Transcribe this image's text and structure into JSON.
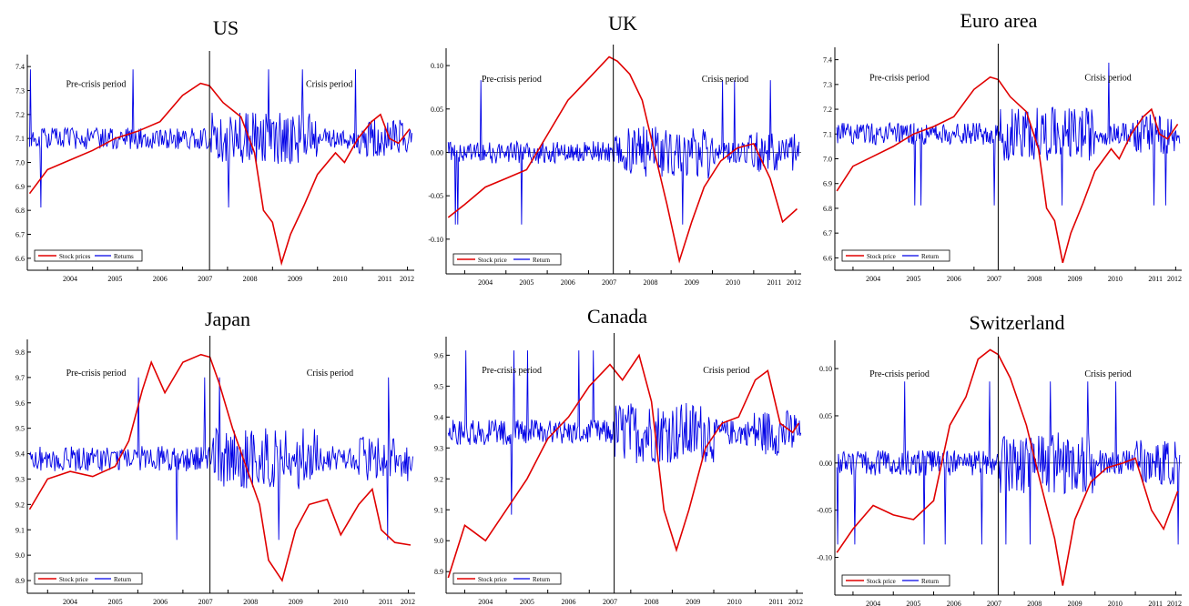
{
  "colors": {
    "stock": "#e00000",
    "returns": "#0000e6",
    "axis": "#000000",
    "zero": "#555555"
  },
  "chart_data": [
    {
      "type": "line",
      "title": "US",
      "x_ticks": [
        "2004",
        "2005",
        "2006",
        "2007",
        "2008",
        "2009",
        "2010",
        "2011",
        "2012"
      ],
      "y_ticks": [
        "6.6",
        "6.7",
        "6.8",
        "6.9",
        "7.0",
        "7.1",
        "7.2",
        "7.3",
        "7.4"
      ],
      "ylim": [
        6.55,
        7.45
      ],
      "crisis_break": 2007.6,
      "annotations": [
        "Pre-crisis period",
        "Crisis period"
      ],
      "legend": [
        "Stock prices",
        "Returns"
      ],
      "legend_position": "bottom-left",
      "return_level": 7.1,
      "zero_line": false,
      "stock_path": [
        [
          2003.6,
          6.87
        ],
        [
          2004.0,
          6.97
        ],
        [
          2004.5,
          7.01
        ],
        [
          2005.0,
          7.05
        ],
        [
          2005.5,
          7.1
        ],
        [
          2006.0,
          7.13
        ],
        [
          2006.5,
          7.17
        ],
        [
          2007.0,
          7.28
        ],
        [
          2007.4,
          7.33
        ],
        [
          2007.6,
          7.32
        ],
        [
          2007.9,
          7.25
        ],
        [
          2008.3,
          7.19
        ],
        [
          2008.6,
          7.04
        ],
        [
          2008.8,
          6.8
        ],
        [
          2009.0,
          6.75
        ],
        [
          2009.2,
          6.58
        ],
        [
          2009.4,
          6.7
        ],
        [
          2009.7,
          6.82
        ],
        [
          2010.0,
          6.95
        ],
        [
          2010.4,
          7.04
        ],
        [
          2010.6,
          7.0
        ],
        [
          2010.9,
          7.1
        ],
        [
          2011.2,
          7.17
        ],
        [
          2011.4,
          7.2
        ],
        [
          2011.6,
          7.1
        ],
        [
          2011.8,
          7.08
        ],
        [
          2012.05,
          7.14
        ]
      ]
    },
    {
      "type": "line",
      "title": "UK",
      "x_ticks": [
        "2004",
        "2005",
        "2006",
        "2007",
        "2008",
        "2009",
        "2010",
        "2011",
        "2012"
      ],
      "y_ticks": [
        "-0.10",
        "-0.05",
        "0.00",
        "0.05",
        "0.10"
      ],
      "ylim": [
        -0.14,
        0.12
      ],
      "crisis_break": 2007.6,
      "annotations": [
        "Pre-crisis period",
        "Crisis period"
      ],
      "legend": [
        "Stock price",
        "Return"
      ],
      "legend_position": "bottom-left",
      "return_level": 0.0,
      "zero_line": true,
      "stock_path": [
        [
          2003.6,
          -0.075
        ],
        [
          2004.0,
          -0.06
        ],
        [
          2004.5,
          -0.04
        ],
        [
          2005.0,
          -0.03
        ],
        [
          2005.5,
          -0.02
        ],
        [
          2006.0,
          0.02
        ],
        [
          2006.5,
          0.06
        ],
        [
          2007.0,
          0.085
        ],
        [
          2007.5,
          0.11
        ],
        [
          2007.7,
          0.105
        ],
        [
          2008.0,
          0.09
        ],
        [
          2008.3,
          0.06
        ],
        [
          2008.6,
          0.0
        ],
        [
          2008.9,
          -0.06
        ],
        [
          2009.2,
          -0.125
        ],
        [
          2009.5,
          -0.08
        ],
        [
          2009.8,
          -0.04
        ],
        [
          2010.2,
          -0.01
        ],
        [
          2010.6,
          0.005
        ],
        [
          2011.0,
          0.01
        ],
        [
          2011.4,
          -0.03
        ],
        [
          2011.7,
          -0.08
        ],
        [
          2012.05,
          -0.065
        ]
      ]
    },
    {
      "type": "line",
      "title": "Euro area",
      "x_ticks": [
        "2004",
        "2005",
        "2006",
        "2007",
        "2008",
        "2009",
        "2010",
        "2011",
        "2012"
      ],
      "y_ticks": [
        "6.6",
        "6.7",
        "6.8",
        "6.9",
        "7.0",
        "7.1",
        "7.2",
        "7.3",
        "7.4"
      ],
      "ylim": [
        6.55,
        7.45
      ],
      "crisis_break": 2007.6,
      "annotations": [
        "Pre-crisis period",
        "Crisis period"
      ],
      "legend": [
        "Stock price",
        "Return"
      ],
      "legend_position": "bottom-left",
      "return_level": 7.1,
      "zero_line": false,
      "stock_path": [
        [
          2003.6,
          6.87
        ],
        [
          2004.0,
          6.97
        ],
        [
          2004.5,
          7.01
        ],
        [
          2005.0,
          7.05
        ],
        [
          2005.5,
          7.1
        ],
        [
          2006.0,
          7.13
        ],
        [
          2006.5,
          7.17
        ],
        [
          2007.0,
          7.28
        ],
        [
          2007.4,
          7.33
        ],
        [
          2007.6,
          7.32
        ],
        [
          2007.9,
          7.25
        ],
        [
          2008.3,
          7.19
        ],
        [
          2008.6,
          7.04
        ],
        [
          2008.8,
          6.8
        ],
        [
          2009.0,
          6.75
        ],
        [
          2009.2,
          6.58
        ],
        [
          2009.4,
          6.7
        ],
        [
          2009.7,
          6.82
        ],
        [
          2010.0,
          6.95
        ],
        [
          2010.4,
          7.04
        ],
        [
          2010.6,
          7.0
        ],
        [
          2010.9,
          7.1
        ],
        [
          2011.2,
          7.17
        ],
        [
          2011.4,
          7.2
        ],
        [
          2011.6,
          7.1
        ],
        [
          2011.8,
          7.08
        ],
        [
          2012.05,
          7.14
        ]
      ]
    },
    {
      "type": "line",
      "title": "Japan",
      "x_ticks": [
        "2004",
        "2005",
        "2006",
        "2007",
        "2008",
        "2009",
        "2010",
        "2011",
        "2012"
      ],
      "y_ticks": [
        "8.9",
        "9.0",
        "9.1",
        "9.2",
        "9.3",
        "9.4",
        "9.5",
        "9.6",
        "9.7",
        "9.8"
      ],
      "ylim": [
        8.85,
        9.85
      ],
      "crisis_break": 2007.6,
      "annotations": [
        "Pre-crisis period",
        "Crisis period"
      ],
      "legend": [
        "Stock price",
        "Return"
      ],
      "legend_position": "bottom-left",
      "return_level": 9.38,
      "zero_line": false,
      "stock_path": [
        [
          2003.6,
          9.18
        ],
        [
          2004.0,
          9.3
        ],
        [
          2004.5,
          9.33
        ],
        [
          2005.0,
          9.31
        ],
        [
          2005.5,
          9.35
        ],
        [
          2005.8,
          9.45
        ],
        [
          2006.1,
          9.65
        ],
        [
          2006.3,
          9.76
        ],
        [
          2006.6,
          9.64
        ],
        [
          2007.0,
          9.76
        ],
        [
          2007.4,
          9.79
        ],
        [
          2007.6,
          9.78
        ],
        [
          2007.8,
          9.68
        ],
        [
          2008.1,
          9.5
        ],
        [
          2008.4,
          9.35
        ],
        [
          2008.7,
          9.2
        ],
        [
          2008.9,
          8.98
        ],
        [
          2009.2,
          8.9
        ],
        [
          2009.5,
          9.1
        ],
        [
          2009.8,
          9.2
        ],
        [
          2010.2,
          9.22
        ],
        [
          2010.5,
          9.08
        ],
        [
          2010.9,
          9.2
        ],
        [
          2011.2,
          9.26
        ],
        [
          2011.4,
          9.1
        ],
        [
          2011.7,
          9.05
        ],
        [
          2012.05,
          9.04
        ]
      ]
    },
    {
      "type": "line",
      "title": "Canada",
      "x_ticks": [
        "2004",
        "2005",
        "2006",
        "2007",
        "2008",
        "2009",
        "2010",
        "2011",
        "2012"
      ],
      "y_ticks": [
        "8.9",
        "9.0",
        "9.1",
        "9.2",
        "9.3",
        "9.4",
        "9.5",
        "9.6"
      ],
      "ylim": [
        8.83,
        9.66
      ],
      "crisis_break": 2007.6,
      "annotations": [
        "Pre-crisis period",
        "Crisis period"
      ],
      "legend": [
        "Stock price",
        "Return"
      ],
      "legend_position": "bottom-left",
      "return_level": 9.35,
      "zero_line": false,
      "stock_path": [
        [
          2003.6,
          8.88
        ],
        [
          2004.0,
          9.05
        ],
        [
          2004.5,
          9.0
        ],
        [
          2005.0,
          9.1
        ],
        [
          2005.5,
          9.2
        ],
        [
          2006.0,
          9.33
        ],
        [
          2006.5,
          9.4
        ],
        [
          2007.0,
          9.5
        ],
        [
          2007.5,
          9.57
        ],
        [
          2007.8,
          9.52
        ],
        [
          2008.2,
          9.6
        ],
        [
          2008.5,
          9.45
        ],
        [
          2008.8,
          9.1
        ],
        [
          2009.1,
          8.97
        ],
        [
          2009.4,
          9.1
        ],
        [
          2009.8,
          9.3
        ],
        [
          2010.2,
          9.38
        ],
        [
          2010.6,
          9.4
        ],
        [
          2011.0,
          9.52
        ],
        [
          2011.3,
          9.55
        ],
        [
          2011.6,
          9.38
        ],
        [
          2011.9,
          9.35
        ],
        [
          2012.05,
          9.38
        ]
      ]
    },
    {
      "type": "line",
      "title": "Switzerland",
      "x_ticks": [
        "2004",
        "2005",
        "2006",
        "2007",
        "2008",
        "2009",
        "2010",
        "2011",
        "2012"
      ],
      "y_ticks": [
        "-0.10",
        "-0.05",
        "0.00",
        "0.05",
        "0.10"
      ],
      "ylim": [
        -0.14,
        0.13
      ],
      "crisis_break": 2007.6,
      "annotations": [
        "Pre-crisis period",
        "Crisis period"
      ],
      "legend": [
        "Stock price",
        "Return"
      ],
      "legend_position": "bottom-left",
      "return_level": 0.0,
      "zero_line": true,
      "stock_path": [
        [
          2003.6,
          -0.095
        ],
        [
          2004.0,
          -0.07
        ],
        [
          2004.5,
          -0.045
        ],
        [
          2005.0,
          -0.055
        ],
        [
          2005.5,
          -0.06
        ],
        [
          2006.0,
          -0.04
        ],
        [
          2006.4,
          0.04
        ],
        [
          2006.8,
          0.07
        ],
        [
          2007.1,
          0.11
        ],
        [
          2007.4,
          0.12
        ],
        [
          2007.6,
          0.115
        ],
        [
          2007.9,
          0.09
        ],
        [
          2008.3,
          0.04
        ],
        [
          2008.7,
          -0.03
        ],
        [
          2009.0,
          -0.08
        ],
        [
          2009.2,
          -0.13
        ],
        [
          2009.5,
          -0.06
        ],
        [
          2009.9,
          -0.02
        ],
        [
          2010.3,
          -0.005
        ],
        [
          2010.7,
          0.0
        ],
        [
          2011.0,
          0.005
        ],
        [
          2011.4,
          -0.05
        ],
        [
          2011.7,
          -0.07
        ],
        [
          2012.05,
          -0.03
        ]
      ]
    }
  ]
}
